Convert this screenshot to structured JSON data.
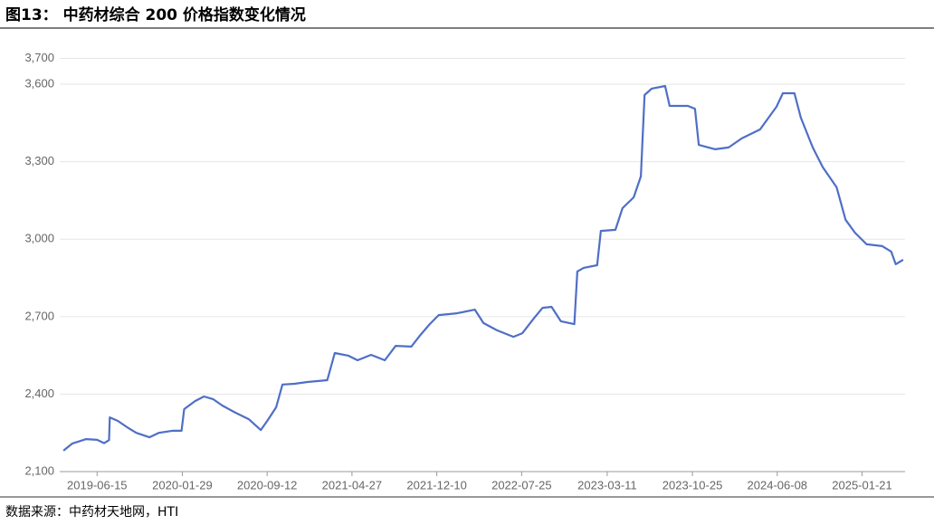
{
  "chart_data": {
    "type": "line",
    "title": "图13： 中药材综合 200 价格指数变化情况",
    "source": "数据来源：中药材天地网，HTI",
    "color": "#4f6fc6",
    "grid": true,
    "xlim": [
      "2019-03-07",
      "2025-05-16"
    ],
    "xticks": [
      "2019-06-15",
      "2020-01-29",
      "2020-09-12",
      "2021-04-27",
      "2021-12-10",
      "2022-07-25",
      "2023-03-11",
      "2023-10-25",
      "2024-06-08",
      "2025-01-21"
    ],
    "ylim": [
      2100,
      3700
    ],
    "yticks": [
      {
        "value": 2100,
        "label": "2,100"
      },
      {
        "value": 2400,
        "label": "2,400"
      },
      {
        "value": 2700,
        "label": "2,700"
      },
      {
        "value": 3000,
        "label": "3,000"
      },
      {
        "value": 3300,
        "label": "3,300"
      },
      {
        "value": 3600,
        "label": "3,600"
      },
      {
        "value": 3700,
        "label": "3,700"
      }
    ],
    "x": [
      "2019-03-17",
      "2019-04-10",
      "2019-05-17",
      "2019-06-15",
      "2019-07-04",
      "2019-07-17",
      "2019-07-19",
      "2019-08-10",
      "2019-09-03",
      "2019-09-28",
      "2019-11-02",
      "2019-11-27",
      "2020-01-02",
      "2020-01-27",
      "2020-02-03",
      "2020-03-03",
      "2020-03-27",
      "2020-04-21",
      "2020-05-15",
      "2020-06-19",
      "2020-07-25",
      "2020-08-26",
      "2020-09-12",
      "2020-10-06",
      "2020-10-23",
      "2020-11-24",
      "2020-12-29",
      "2021-02-20",
      "2021-03-12",
      "2021-04-17",
      "2021-05-12",
      "2021-06-17",
      "2021-07-24",
      "2021-08-22",
      "2021-10-03",
      "2021-10-27",
      "2021-11-21",
      "2021-12-15",
      "2022-02-02",
      "2022-03-22",
      "2022-04-14",
      "2022-05-20",
      "2022-07-03",
      "2022-07-27",
      "2022-08-26",
      "2022-09-19",
      "2022-10-13",
      "2022-11-07",
      "2022-12-13",
      "2022-12-21",
      "2023-01-07",
      "2023-02-12",
      "2023-02-22",
      "2023-04-02",
      "2023-04-21",
      "2023-05-21",
      "2023-06-09",
      "2023-06-19",
      "2023-07-08",
      "2023-08-13",
      "2023-08-25",
      "2023-10-13",
      "2023-11-01",
      "2023-11-11",
      "2023-12-25",
      "2024-01-30",
      "2024-03-05",
      "2024-04-23",
      "2024-06-06",
      "2024-06-23",
      "2024-07-24",
      "2024-08-10",
      "2024-09-11",
      "2024-10-08",
      "2024-11-14",
      "2024-12-08",
      "2025-01-02",
      "2025-02-02",
      "2025-03-16",
      "2025-04-09",
      "2025-04-21",
      "2025-05-11"
    ],
    "values": [
      2181,
      2209,
      2226,
      2223,
      2210,
      2222,
      2310,
      2296,
      2272,
      2250,
      2233,
      2250,
      2258,
      2258,
      2342,
      2373,
      2391,
      2380,
      2356,
      2328,
      2303,
      2261,
      2296,
      2349,
      2437,
      2440,
      2447,
      2454,
      2559,
      2549,
      2531,
      2552,
      2531,
      2587,
      2584,
      2629,
      2671,
      2706,
      2713,
      2727,
      2675,
      2647,
      2622,
      2636,
      2692,
      2734,
      2738,
      2682,
      2671,
      2875,
      2889,
      2899,
      3032,
      3036,
      3120,
      3162,
      3243,
      3558,
      3583,
      3593,
      3516,
      3516,
      3505,
      3365,
      3348,
      3355,
      3390,
      3425,
      3513,
      3565,
      3565,
      3471,
      3355,
      3278,
      3201,
      3075,
      3025,
      2980,
      2973,
      2952,
      2903,
      2920
    ]
  }
}
